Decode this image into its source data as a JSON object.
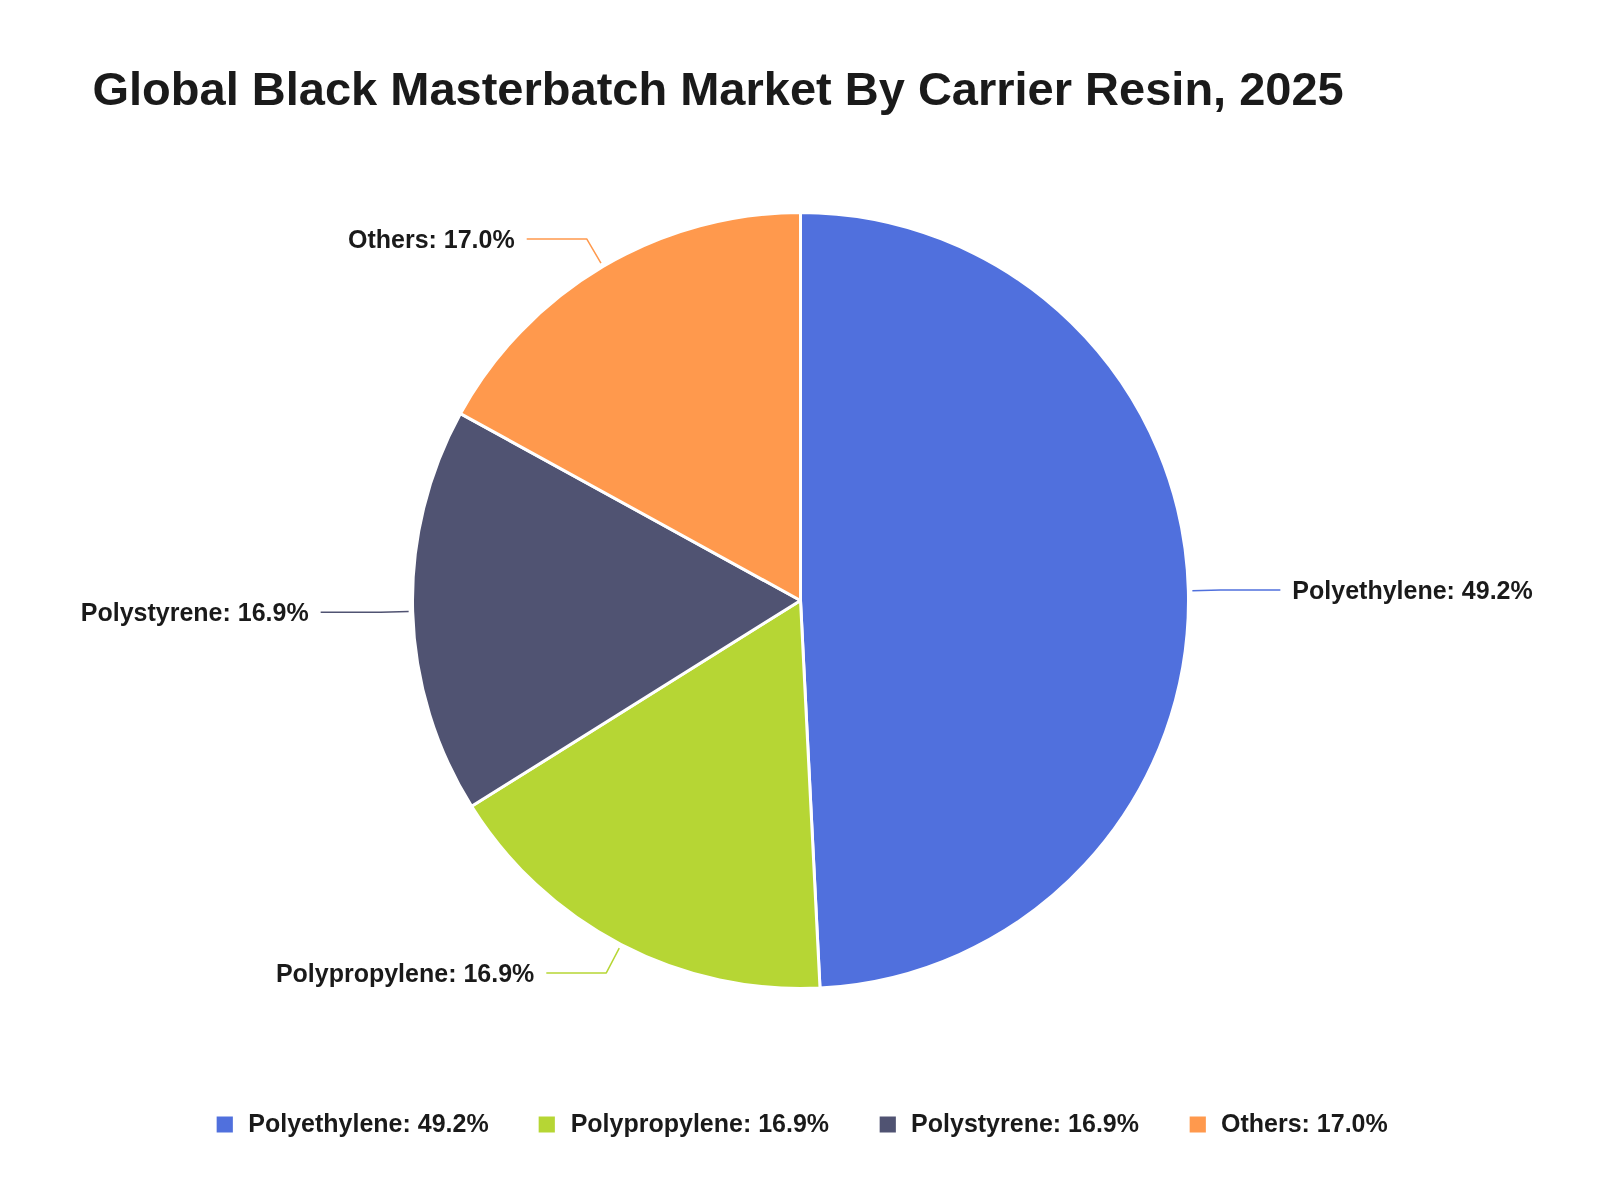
{
  "chart_data": {
    "type": "pie",
    "title": "Global Black Masterbatch Market By Carrier Resin, 2025",
    "categories": [
      "Polyethylene: 49.2%",
      "Polypropylene: 16.9%",
      "Polystyrene: 16.9%",
      "Others: 17.0%"
    ],
    "values": [
      49.2,
      16.9,
      16.9,
      17.0
    ],
    "colors": [
      "#5070dd",
      "#b6d634",
      "#505372",
      "#ff994d"
    ],
    "legend": "bottom"
  }
}
